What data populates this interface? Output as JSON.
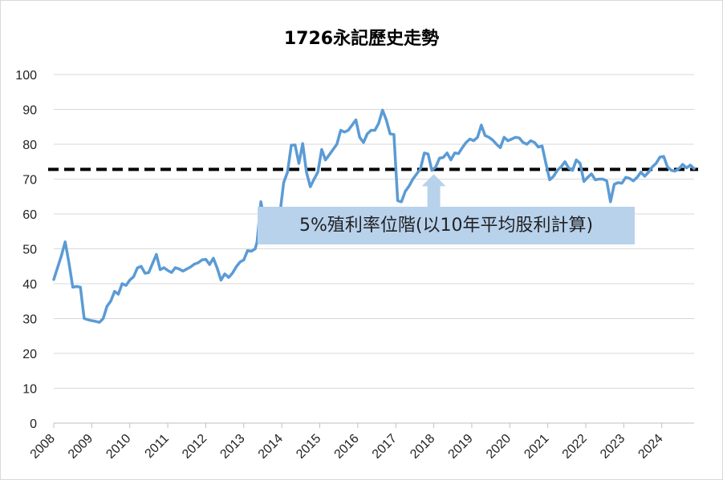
{
  "chart_data": {
    "type": "line",
    "title": "1726永記歷史走勢",
    "xlabel": "",
    "ylabel": "",
    "ylim": [
      0,
      100
    ],
    "yticks": [
      0,
      10,
      20,
      30,
      40,
      50,
      60,
      70,
      80,
      90,
      100
    ],
    "xlim": [
      2008.0,
      2024.85
    ],
    "xticks": [
      "2008",
      "2009",
      "2010",
      "2011",
      "2012",
      "2013",
      "2014",
      "2015",
      "2016",
      "2017",
      "2018",
      "2019",
      "2020",
      "2021",
      "2022",
      "2023",
      "2024"
    ],
    "grid": "horizontal",
    "series": [
      {
        "color": "#5b9bd5",
        "points": [
          [
            2008.0,
            41.2
          ],
          [
            2008.1,
            44.6
          ],
          [
            2008.2,
            48.0
          ],
          [
            2008.3,
            52.0
          ],
          [
            2008.4,
            46.0
          ],
          [
            2008.5,
            39.0
          ],
          [
            2008.6,
            39.2
          ],
          [
            2008.7,
            39.0
          ],
          [
            2008.8,
            30.0
          ],
          [
            2008.95,
            29.5
          ],
          [
            2009.1,
            29.2
          ],
          [
            2009.2,
            28.9
          ],
          [
            2009.3,
            30.0
          ],
          [
            2009.4,
            33.5
          ],
          [
            2009.5,
            35.0
          ],
          [
            2009.6,
            37.8
          ],
          [
            2009.7,
            37.0
          ],
          [
            2009.8,
            40.0
          ],
          [
            2009.9,
            39.5
          ],
          [
            2010.0,
            41.0
          ],
          [
            2010.1,
            42.0
          ],
          [
            2010.2,
            44.5
          ],
          [
            2010.3,
            45.0
          ],
          [
            2010.4,
            43.0
          ],
          [
            2010.5,
            43.2
          ],
          [
            2010.6,
            45.8
          ],
          [
            2010.7,
            48.4
          ],
          [
            2010.8,
            44.0
          ],
          [
            2010.9,
            44.6
          ],
          [
            2011.0,
            43.8
          ],
          [
            2011.1,
            43.2
          ],
          [
            2011.2,
            44.6
          ],
          [
            2011.3,
            44.2
          ],
          [
            2011.4,
            43.6
          ],
          [
            2011.5,
            44.2
          ],
          [
            2011.6,
            44.8
          ],
          [
            2011.7,
            45.6
          ],
          [
            2011.8,
            46.0
          ],
          [
            2011.9,
            46.8
          ],
          [
            2012.0,
            47.0
          ],
          [
            2012.1,
            45.5
          ],
          [
            2012.2,
            47.3
          ],
          [
            2012.3,
            44.5
          ],
          [
            2012.4,
            41.0
          ],
          [
            2012.5,
            42.8
          ],
          [
            2012.6,
            41.8
          ],
          [
            2012.7,
            43.0
          ],
          [
            2012.8,
            44.8
          ],
          [
            2012.9,
            46.2
          ],
          [
            2013.0,
            46.8
          ],
          [
            2013.1,
            49.5
          ],
          [
            2013.2,
            49.3
          ],
          [
            2013.3,
            50.0
          ],
          [
            2013.35,
            52.0
          ],
          [
            2013.45,
            63.5
          ],
          [
            2013.55,
            58.0
          ],
          [
            2013.65,
            55.0
          ],
          [
            2013.75,
            57.0
          ],
          [
            2013.9,
            59.0
          ],
          [
            2013.95,
            60.0
          ],
          [
            2014.05,
            69.0
          ],
          [
            2014.15,
            72.0
          ],
          [
            2014.25,
            79.7
          ],
          [
            2014.35,
            79.8
          ],
          [
            2014.45,
            74.5
          ],
          [
            2014.55,
            80.2
          ],
          [
            2014.65,
            72.0
          ],
          [
            2014.75,
            67.8
          ],
          [
            2014.85,
            70.0
          ],
          [
            2014.95,
            72.0
          ],
          [
            2015.05,
            78.5
          ],
          [
            2015.15,
            75.5
          ],
          [
            2015.25,
            77.0
          ],
          [
            2015.35,
            78.5
          ],
          [
            2015.45,
            80.0
          ],
          [
            2015.55,
            84.0
          ],
          [
            2015.65,
            83.5
          ],
          [
            2015.75,
            84.0
          ],
          [
            2015.85,
            85.5
          ],
          [
            2015.95,
            87.0
          ],
          [
            2016.05,
            82.0
          ],
          [
            2016.15,
            80.5
          ],
          [
            2016.25,
            83.0
          ],
          [
            2016.35,
            84.0
          ],
          [
            2016.45,
            84.0
          ],
          [
            2016.55,
            86.0
          ],
          [
            2016.65,
            89.8
          ],
          [
            2016.75,
            87.0
          ],
          [
            2016.85,
            83.0
          ],
          [
            2016.95,
            82.8
          ],
          [
            2017.05,
            63.8
          ],
          [
            2017.15,
            63.5
          ],
          [
            2017.25,
            66.5
          ],
          [
            2017.35,
            68.0
          ],
          [
            2017.45,
            70.0
          ],
          [
            2017.55,
            71.5
          ],
          [
            2017.65,
            73.0
          ],
          [
            2017.75,
            77.5
          ],
          [
            2017.85,
            77.2
          ],
          [
            2017.95,
            72.5
          ],
          [
            2018.05,
            73.5
          ],
          [
            2018.15,
            76.0
          ],
          [
            2018.25,
            76.2
          ],
          [
            2018.35,
            77.5
          ],
          [
            2018.45,
            75.5
          ],
          [
            2018.55,
            77.5
          ],
          [
            2018.65,
            77.3
          ],
          [
            2018.75,
            79.0
          ],
          [
            2018.85,
            80.5
          ],
          [
            2018.95,
            81.5
          ],
          [
            2019.05,
            81.0
          ],
          [
            2019.15,
            82.0
          ],
          [
            2019.25,
            85.5
          ],
          [
            2019.35,
            82.5
          ],
          [
            2019.45,
            82.0
          ],
          [
            2019.55,
            81.2
          ],
          [
            2019.65,
            80.0
          ],
          [
            2019.75,
            79.0
          ],
          [
            2019.85,
            82.0
          ],
          [
            2019.95,
            81.0
          ],
          [
            2020.05,
            81.5
          ],
          [
            2020.15,
            82.0
          ],
          [
            2020.25,
            81.8
          ],
          [
            2020.35,
            80.5
          ],
          [
            2020.45,
            80.0
          ],
          [
            2020.55,
            81.0
          ],
          [
            2020.65,
            80.5
          ],
          [
            2020.75,
            79.2
          ],
          [
            2020.85,
            79.5
          ],
          [
            2020.95,
            74.5
          ],
          [
            2021.05,
            69.8
          ],
          [
            2021.15,
            70.8
          ],
          [
            2021.25,
            72.5
          ],
          [
            2021.35,
            73.5
          ],
          [
            2021.45,
            75.0
          ],
          [
            2021.55,
            73.2
          ],
          [
            2021.65,
            72.5
          ],
          [
            2021.75,
            75.5
          ],
          [
            2021.85,
            74.5
          ],
          [
            2021.95,
            69.3
          ],
          [
            2022.05,
            70.5
          ],
          [
            2022.15,
            71.5
          ],
          [
            2022.25,
            69.8
          ],
          [
            2022.35,
            70.0
          ],
          [
            2022.45,
            70.0
          ],
          [
            2022.55,
            69.5
          ],
          [
            2022.65,
            63.5
          ],
          [
            2022.75,
            68.5
          ],
          [
            2022.85,
            69.0
          ],
          [
            2022.95,
            68.8
          ],
          [
            2023.05,
            70.5
          ],
          [
            2023.15,
            70.2
          ],
          [
            2023.25,
            69.5
          ],
          [
            2023.35,
            70.5
          ],
          [
            2023.45,
            72.0
          ],
          [
            2023.55,
            70.8
          ],
          [
            2023.65,
            72.0
          ],
          [
            2023.75,
            73.5
          ],
          [
            2023.85,
            74.5
          ],
          [
            2023.95,
            76.3
          ],
          [
            2024.05,
            76.5
          ],
          [
            2024.15,
            73.5
          ],
          [
            2024.25,
            72.5
          ],
          [
            2024.35,
            72.3
          ],
          [
            2024.45,
            73.0
          ],
          [
            2024.55,
            74.2
          ],
          [
            2024.65,
            73.2
          ],
          [
            2024.75,
            74.0
          ],
          [
            2024.85,
            73.0
          ]
        ]
      }
    ],
    "reference_line": {
      "y": 72.8,
      "color": "#000000",
      "style": "dashed"
    },
    "annotation": {
      "text": "5%殖利率位階(以10年平均股利計算)",
      "arrow_x": 2018.0
    }
  }
}
